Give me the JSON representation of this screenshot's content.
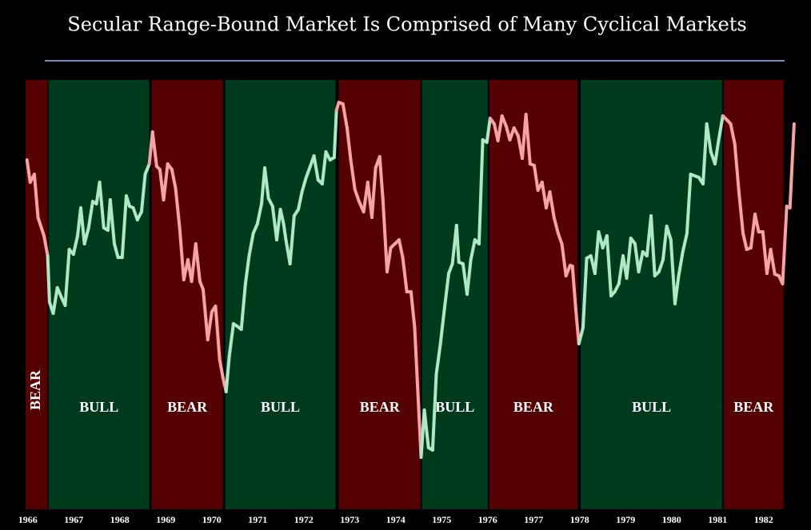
{
  "chart_data": {
    "type": "line",
    "title": "Secular Range-Bound Market Is Comprised of Many Cyclical Markets",
    "xlim": [
      1965.97,
      1982.75
    ],
    "ylim": [
      0,
      537
    ],
    "xticks": [
      1966,
      1967,
      1968,
      1969,
      1970,
      1971,
      1972,
      1973,
      1974,
      1975,
      1976,
      1977,
      1978,
      1979,
      1980,
      1981,
      1982
    ],
    "regions": [
      {
        "label": "BEAR",
        "start": 1965.97,
        "end": 1966.45,
        "color": "#540000",
        "line_color": "#f5a3a3"
      },
      {
        "label": "BULL",
        "start": 1966.47,
        "end": 1968.66,
        "color": "#003a1d",
        "line_color": "#aee8c6"
      },
      {
        "label": "BEAR",
        "start": 1968.71,
        "end": 1970.26,
        "color": "#540000",
        "line_color": "#f5a3a3"
      },
      {
        "label": "BULL",
        "start": 1970.31,
        "end": 1972.71,
        "color": "#003a1d",
        "line_color": "#aee8c6"
      },
      {
        "label": "BEAR",
        "start": 1972.78,
        "end": 1974.56,
        "color": "#540000",
        "line_color": "#f5a3a3"
      },
      {
        "label": "BULL",
        "start": 1974.59,
        "end": 1976.02,
        "color": "#003a1d",
        "line_color": "#aee8c6"
      },
      {
        "label": "BEAR",
        "start": 1976.05,
        "end": 1977.97,
        "color": "#540000",
        "line_color": "#f5a3a3"
      },
      {
        "label": "BULL",
        "start": 1978.04,
        "end": 1981.12,
        "color": "#003a1d",
        "line_color": "#aee8c6"
      },
      {
        "label": "BEAR",
        "start": 1981.15,
        "end": 1982.45,
        "color": "#540000",
        "line_color": "#f5a3a3"
      }
    ],
    "series": [
      {
        "x": [
          1966.0,
          1966.07,
          1966.16,
          1966.24,
          1966.37,
          1966.45,
          1966.49,
          1966.57,
          1966.66,
          1966.75,
          1966.83,
          1966.92,
          1967.01,
          1967.1,
          1967.17,
          1967.25,
          1967.34,
          1967.43,
          1967.51,
          1967.58,
          1967.67,
          1967.76,
          1967.81,
          1967.9,
          1967.98,
          1968.07,
          1968.16,
          1968.23,
          1968.31,
          1968.4,
          1968.49,
          1968.57,
          1968.66,
          1968.73,
          1968.82,
          1968.89,
          1968.97,
          1969.06,
          1969.15,
          1969.23,
          1969.32,
          1969.41,
          1969.5,
          1969.58,
          1969.67,
          1969.76,
          1969.83,
          1969.93,
          1970.02,
          1970.1,
          1970.19,
          1970.26,
          1970.33,
          1970.4,
          1970.49,
          1970.57,
          1970.66,
          1970.75,
          1970.83,
          1970.92,
          1971.01,
          1971.1,
          1971.17,
          1971.25,
          1971.34,
          1971.43,
          1971.51,
          1971.58,
          1971.63,
          1971.72,
          1971.81,
          1971.9,
          1971.98,
          1972.07,
          1972.16,
          1972.24,
          1972.33,
          1972.42,
          1972.5,
          1972.59,
          1972.68,
          1972.73,
          1972.78,
          1972.87,
          1972.96,
          1973.04,
          1973.13,
          1973.22,
          1973.32,
          1973.41,
          1973.5,
          1973.58,
          1973.67,
          1973.74,
          1973.83,
          1973.91,
          1974.0,
          1974.09,
          1974.17,
          1974.26,
          1974.35,
          1974.43,
          1974.52,
          1974.57,
          1974.64,
          1974.73,
          1974.82,
          1974.9,
          1974.99,
          1975.08,
          1975.17,
          1975.25,
          1975.34,
          1975.39,
          1975.48,
          1975.57,
          1975.65,
          1975.74,
          1975.83,
          1975.91,
          1976.0,
          1976.07,
          1976.16,
          1976.24,
          1976.33,
          1976.42,
          1976.5,
          1976.59,
          1976.68,
          1976.77,
          1976.85,
          1976.94,
          1977.03,
          1977.11,
          1977.2,
          1977.29,
          1977.37,
          1977.46,
          1977.55,
          1977.63,
          1977.72,
          1977.81,
          1977.86,
          1977.93,
          1978.0,
          1978.09,
          1978.17,
          1978.26,
          1978.35,
          1978.43,
          1978.52,
          1978.61,
          1978.7,
          1978.78,
          1978.87,
          1978.96,
          1979.04,
          1979.13,
          1979.22,
          1979.3,
          1979.39,
          1979.48,
          1979.57,
          1979.65,
          1979.74,
          1979.83,
          1979.91,
          1980.0,
          1980.09,
          1980.17,
          1980.26,
          1980.35,
          1980.43,
          1980.52,
          1980.61,
          1980.7,
          1980.78,
          1980.87,
          1980.96,
          1981.04,
          1981.13,
          1981.22,
          1981.3,
          1981.39,
          1981.48,
          1981.57,
          1981.65,
          1981.74,
          1981.83,
          1981.91,
          1982.0,
          1982.09,
          1982.17,
          1982.26,
          1982.35,
          1982.43,
          1982.52,
          1982.59,
          1982.68
        ],
        "values": [
          437,
          409,
          419,
          365,
          342,
          317,
          259,
          245,
          277,
          265,
          255,
          325,
          319,
          342,
          377,
          332,
          352,
          385,
          382,
          409,
          352,
          349,
          387,
          332,
          315,
          315,
          392,
          379,
          377,
          362,
          372,
          419,
          432,
          472,
          429,
          425,
          387,
          432,
          425,
          402,
          352,
          287,
          312,
          285,
          332,
          285,
          275,
          212,
          247,
          254,
          187,
          165,
          147,
          192,
          232,
          229,
          225,
          282,
          317,
          345,
          357,
          382,
          427,
          389,
          379,
          337,
          375,
          357,
          337,
          307,
          367,
          375,
          397,
          415,
          429,
          442,
          412,
          407,
          447,
          437,
          440,
          499,
          509,
          507,
          477,
          437,
          400,
          385,
          372,
          409,
          365,
          427,
          441,
          387,
          297,
          327,
          332,
          337,
          315,
          272,
          272,
          227,
          122,
          65,
          124,
          77,
          74,
          169,
          207,
          252,
          295,
          307,
          355,
          309,
          307,
          269,
          312,
          337,
          332,
          462,
          459,
          489,
          482,
          461,
          492,
          479,
          462,
          477,
          467,
          439,
          494,
          432,
          430,
          399,
          409,
          377,
          397,
          365,
          345,
          332,
          292,
          305,
          304,
          252,
          207,
          227,
          314,
          317,
          295,
          347,
          327,
          342,
          267,
          272,
          282,
          317,
          289,
          339,
          332,
          297,
          322,
          317,
          367,
          292,
          297,
          312,
          354,
          337,
          257,
          292,
          322,
          345,
          419,
          417,
          415,
          407,
          482,
          447,
          432,
          462,
          492,
          487,
          482,
          457,
          397,
          345,
          325,
          327,
          369,
          347,
          347,
          295,
          325,
          294,
          292,
          282,
          379,
          377,
          482
        ]
      }
    ]
  }
}
